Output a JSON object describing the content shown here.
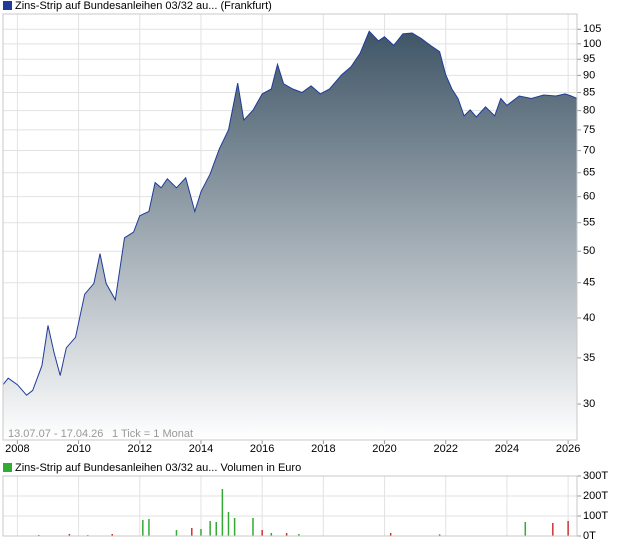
{
  "chart_data": [
    {
      "type": "area",
      "title": "Zins-Strip auf Bundesanleihen 03/32 au... (Frankfurt)",
      "annotations": [
        "13.07.07 - 17.04.26",
        "1 Tick = 1 Monat"
      ],
      "line_color": "#1f3c99",
      "fill_top": "#3f5566",
      "fill_bottom": "#ffffff",
      "log_scale": true,
      "grid": true,
      "xlim": [
        2007.53,
        2026.29
      ],
      "xticks": [
        2008,
        2010,
        2012,
        2014,
        2016,
        2018,
        2020,
        2022,
        2024,
        2026
      ],
      "ylim": [
        26.6,
        110.5
      ],
      "yticks": [
        30,
        35,
        40,
        45,
        50,
        55,
        60,
        65,
        70,
        75,
        80,
        85,
        90,
        95,
        100,
        105
      ],
      "x": [
        2007.53,
        2007.7,
        2008.0,
        2008.3,
        2008.5,
        2008.8,
        2009.0,
        2009.2,
        2009.4,
        2009.6,
        2009.9,
        2010.2,
        2010.5,
        2010.7,
        2010.9,
        2011.2,
        2011.5,
        2011.8,
        2012.0,
        2012.3,
        2012.5,
        2012.7,
        2012.9,
        2013.2,
        2013.5,
        2013.8,
        2014.0,
        2014.3,
        2014.6,
        2014.9,
        2015.2,
        2015.4,
        2015.7,
        2016.0,
        2016.3,
        2016.5,
        2016.7,
        2017.0,
        2017.3,
        2017.6,
        2017.9,
        2018.2,
        2018.6,
        2018.9,
        2019.2,
        2019.5,
        2019.8,
        2020.0,
        2020.3,
        2020.6,
        2020.9,
        2021.2,
        2021.5,
        2021.8,
        2022.0,
        2022.2,
        2022.4,
        2022.6,
        2022.8,
        2023.0,
        2023.3,
        2023.6,
        2023.8,
        2024.0,
        2024.4,
        2024.8,
        2025.2,
        2025.6,
        2025.9,
        2026.1,
        2026.29
      ],
      "values": [
        32.0,
        32.7,
        32.0,
        30.9,
        31.4,
        34.1,
        39.0,
        35.6,
        33.0,
        36.2,
        37.5,
        43.3,
        44.9,
        49.6,
        44.9,
        42.5,
        52.3,
        53.3,
        56.3,
        57.1,
        62.9,
        61.8,
        63.7,
        61.8,
        63.9,
        57.1,
        61.0,
        64.7,
        70.4,
        75.0,
        87.7,
        77.5,
        80.1,
        84.6,
        86.0,
        93.4,
        87.5,
        86.0,
        85.0,
        86.9,
        84.6,
        86.0,
        90.2,
        92.6,
        96.9,
        104.3,
        101.0,
        102.4,
        99.5,
        103.4,
        103.7,
        101.8,
        99.5,
        97.4,
        90.2,
        86.0,
        83.3,
        78.6,
        80.2,
        78.3,
        81.0,
        78.6,
        83.3,
        81.4,
        84.0,
        83.3,
        84.3,
        84.0,
        84.6,
        84.0,
        83.3
      ]
    },
    {
      "type": "bar",
      "title": "Zins-Strip auf Bundesanleihen 03/32 au... Volumen in Euro",
      "grid": true,
      "xlim": [
        2007.53,
        2026.29
      ],
      "xticks": [
        2008,
        2010,
        2012,
        2014,
        2016,
        2018,
        2020,
        2022,
        2024,
        2026
      ],
      "ylim": [
        0,
        300000
      ],
      "yticks": [
        {
          "value": 0,
          "label": "0T"
        },
        {
          "value": 100000,
          "label": "100T"
        },
        {
          "value": 200000,
          "label": "200T"
        },
        {
          "value": 300000,
          "label": "300T"
        }
      ],
      "x": [
        2008.7,
        2009.7,
        2010.3,
        2011.1,
        2012.1,
        2012.3,
        2013.2,
        2013.7,
        2014.0,
        2014.3,
        2014.5,
        2014.7,
        2014.9,
        2015.1,
        2015.7,
        2016.0,
        2016.3,
        2016.8,
        2017.2,
        2020.2,
        2021.8,
        2024.6,
        2025.5,
        2026.0
      ],
      "values": [
        5000,
        10000,
        5000,
        10000,
        80000,
        85000,
        30000,
        40000,
        35000,
        75000,
        70000,
        235000,
        120000,
        90000,
        90000,
        30000,
        15000,
        15000,
        10000,
        15000,
        8000,
        70000,
        65000,
        75000
      ],
      "colors": [
        "#cc3333",
        "#cc3333",
        "#33aa33",
        "#cc3333",
        "#33aa33",
        "#33aa33",
        "#33aa33",
        "#cc3333",
        "#33aa33",
        "#33aa33",
        "#33aa33",
        "#33aa33",
        "#33aa33",
        "#33aa33",
        "#33aa33",
        "#cc3333",
        "#33aa33",
        "#cc3333",
        "#33aa33",
        "#cc3333",
        "#cc3333",
        "#33aa33",
        "#cc3333",
        "#cc3333"
      ]
    }
  ]
}
